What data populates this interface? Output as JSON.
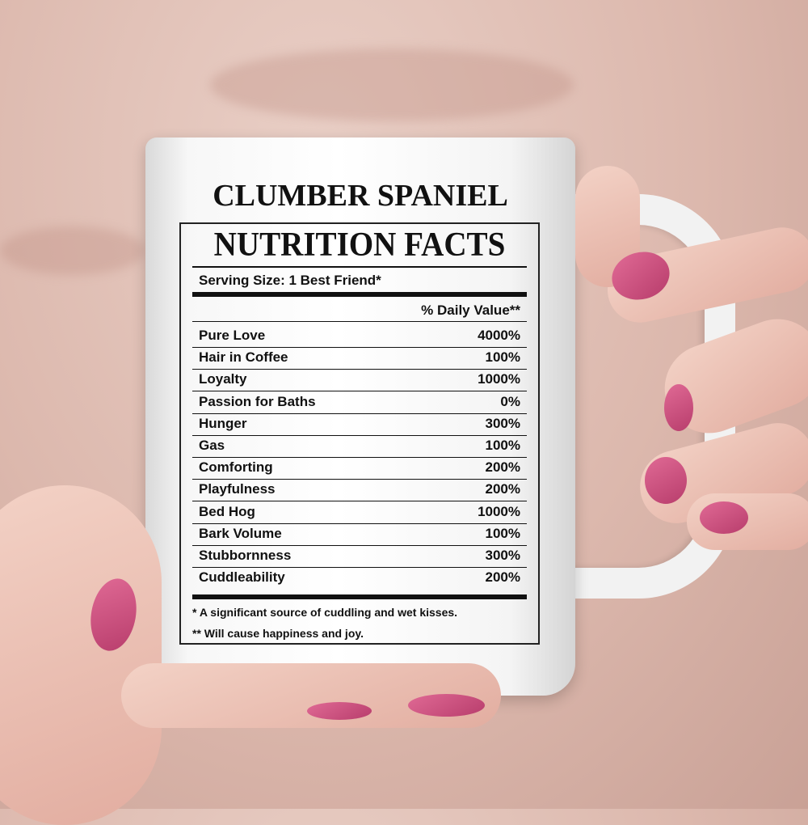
{
  "mug": {
    "title": "CLUMBER SPANIEL",
    "heading": "NUTRITION FACTS",
    "serving": "Serving Size:  1 Best Friend*",
    "daily_value_header": "% Daily Value**",
    "rows": [
      {
        "label": "Pure Love",
        "value": "4000%"
      },
      {
        "label": "Hair in Coffee",
        "value": "100%"
      },
      {
        "label": "Loyalty",
        "value": "1000%"
      },
      {
        "label": "Passion for Baths",
        "value": "0%"
      },
      {
        "label": "Hunger",
        "value": "300%"
      },
      {
        "label": "Gas",
        "value": "100%"
      },
      {
        "label": "Comforting",
        "value": "200%"
      },
      {
        "label": "Playfulness",
        "value": "200%"
      },
      {
        "label": "Bed Hog",
        "value": "1000%"
      },
      {
        "label": "Bark Volume",
        "value": "100%"
      },
      {
        "label": "Stubbornness",
        "value": "300%"
      },
      {
        "label": "Cuddleability",
        "value": "200%"
      }
    ],
    "footnote1": "* A significant source of cuddling and wet kisses.",
    "footnote2": "** Will cause happiness and joy."
  },
  "colors": {
    "background": "#dcb8ad",
    "nail": "#c94a7a",
    "mug": "#ffffff"
  }
}
